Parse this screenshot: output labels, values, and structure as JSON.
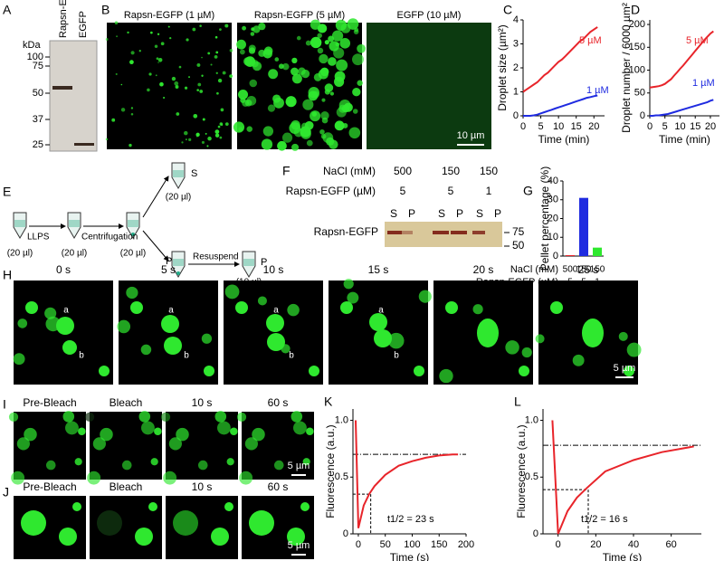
{
  "panel_labels": [
    "A",
    "B",
    "C",
    "D",
    "E",
    "F",
    "G",
    "H",
    "I",
    "J",
    "K",
    "L"
  ],
  "panel_a": {
    "unit": "kDa",
    "markers": [
      "100",
      "75",
      "50",
      "37",
      "25"
    ],
    "lanes": [
      "Rapsn-EGFP",
      "EGFP"
    ]
  },
  "panel_b": {
    "titles": [
      "Rapsn-EGFP (1 µM)",
      "Rapsn-EGFP (5 µM)",
      "EGFP (10 µM)"
    ],
    "scale": "10 µm"
  },
  "panel_e": {
    "step1": "LLPS",
    "step2": "Centrifugation",
    "step3": "Resuspend",
    "volume_start": [
      "(20 µl)",
      "(20 µl)",
      "(20 µl)"
    ],
    "supernatant": "S",
    "supernatant_volume": "(20 µl)",
    "pellet": "P",
    "pellet_final": "P",
    "pellet_volume": "(10 µl)"
  },
  "panel_f": {
    "row1_label": "NaCl (mM)",
    "row1": [
      "500",
      "150",
      "150"
    ],
    "row2_label": "Rapsn-EGFP (µM)",
    "row2": [
      "5",
      "5",
      "1"
    ],
    "band_label": "Rapsn-EGFP",
    "lanes": [
      "S",
      "P",
      "S",
      "P",
      "S",
      "P"
    ],
    "markers": [
      "75",
      "50"
    ]
  },
  "panel_h": {
    "times": [
      "0 s",
      "5 s",
      "10 s",
      "15 s",
      "20 s",
      "25 s"
    ],
    "droplet_a": "a",
    "droplet_b": "b",
    "scale": "5 µm"
  },
  "panel_i": {
    "titles": [
      "Pre-Bleach",
      "Bleach",
      "10 s",
      "60 s"
    ],
    "scale": "5 µm"
  },
  "panel_j": {
    "titles": [
      "Pre-Bleach",
      "Bleach",
      "10 s",
      "60 s"
    ],
    "scale": "5 µm"
  },
  "chart_data": [
    {
      "type": "line",
      "y_label": "Droplet size (µm²)",
      "x_label": "Time (min)",
      "x": [
        0,
        1,
        2,
        3,
        4,
        5,
        6,
        7,
        8,
        9,
        10,
        11,
        12,
        13,
        14,
        15,
        16,
        17,
        18,
        19,
        20,
        21
      ],
      "xlim": [
        0,
        23
      ],
      "xticks": [
        0,
        5,
        10,
        15,
        20
      ],
      "ylim": [
        0,
        4
      ],
      "yticks": [
        0,
        1,
        2,
        3,
        4
      ],
      "series": [
        {
          "name": "5 µM",
          "color": "#e8242a",
          "values": [
            1.0,
            1.1,
            1.2,
            1.3,
            1.4,
            1.55,
            1.7,
            1.8,
            1.95,
            2.1,
            2.25,
            2.35,
            2.5,
            2.65,
            2.8,
            2.95,
            3.1,
            3.2,
            3.35,
            3.5,
            3.6,
            3.7
          ]
        },
        {
          "name": "1 µM",
          "color": "#1f2be0",
          "values": [
            0.0,
            0.0,
            0.0,
            0.02,
            0.05,
            0.1,
            0.15,
            0.2,
            0.25,
            0.3,
            0.35,
            0.4,
            0.45,
            0.5,
            0.55,
            0.6,
            0.65,
            0.7,
            0.75,
            0.78,
            0.82,
            0.85
          ]
        }
      ]
    },
    {
      "type": "line",
      "y_label": "Droplet number / 6000 µm²",
      "x_label": "Time (min)",
      "x": [
        0,
        1,
        2,
        3,
        4,
        5,
        6,
        7,
        8,
        9,
        10,
        11,
        12,
        13,
        14,
        15,
        16,
        17,
        18,
        19,
        20,
        21
      ],
      "xlim": [
        0,
        23
      ],
      "xticks": [
        0,
        5,
        10,
        15,
        20
      ],
      "ylim": [
        0,
        210
      ],
      "yticks": [
        0,
        50,
        100,
        150,
        200
      ],
      "series": [
        {
          "name": "5 µM",
          "color": "#e8242a",
          "values": [
            62,
            63,
            64,
            65,
            67,
            70,
            75,
            80,
            88,
            95,
            103,
            110,
            118,
            126,
            134,
            142,
            150,
            158,
            166,
            173,
            180,
            185
          ]
        },
        {
          "name": "1 µM",
          "color": "#1f2be0",
          "values": [
            0,
            0,
            1,
            1,
            2,
            3,
            4,
            6,
            8,
            10,
            12,
            14,
            16,
            18,
            20,
            22,
            24,
            26,
            28,
            30,
            33,
            35
          ]
        }
      ]
    },
    {
      "type": "bar",
      "y_label": "Pellet percentage (%)",
      "categories_label": "NaCl (mM)",
      "categories": [
        "500",
        "150",
        "150"
      ],
      "categories2_label": "Rapsn-EGFP (µM)",
      "categories2": [
        "5",
        "5",
        "1"
      ],
      "values": [
        0.5,
        31,
        4.5
      ],
      "colors": [
        "#e8242a",
        "#1f2be0",
        "#2ee82e"
      ],
      "ylim": [
        0,
        40
      ],
      "yticks": [
        0,
        10,
        20,
        30,
        40
      ]
    },
    {
      "type": "line",
      "y_label": "Fluorescence (a.u.)",
      "x_label": "Time (s)",
      "annotation": "t1/2 = 23 s",
      "x": [
        -5,
        0,
        10,
        20,
        30,
        50,
        75,
        100,
        125,
        150,
        175,
        185
      ],
      "xlim": [
        -10,
        200
      ],
      "xticks": [
        0,
        50,
        100,
        150,
        200
      ],
      "ylim": [
        0,
        1.1
      ],
      "yticks": [
        0,
        0.5,
        {
          "value": 1,
          "label": "1.0"
        }
      ],
      "plateau": 0.7,
      "half": 0.35,
      "t_half": 23,
      "series": [
        {
          "name": null,
          "color": "#e8242a",
          "values": [
            1.0,
            0.05,
            0.25,
            0.35,
            0.42,
            0.52,
            0.6,
            0.64,
            0.67,
            0.69,
            0.7,
            0.7
          ]
        }
      ]
    },
    {
      "type": "line",
      "y_label": "Fluorescence (a.u.)",
      "x_label": "Time (s)",
      "annotation": "t1/2 = 16 s",
      "x": [
        -3,
        0,
        5,
        10,
        15,
        25,
        40,
        55,
        72
      ],
      "xlim": [
        -8,
        76
      ],
      "xticks": [
        0,
        20,
        40,
        60
      ],
      "ylim": [
        0,
        1.1
      ],
      "yticks": [
        0,
        0.5,
        {
          "value": 1,
          "label": "1.0"
        }
      ],
      "plateau": 0.78,
      "half": 0.39,
      "t_half": 16,
      "series": [
        {
          "name": null,
          "color": "#e8242a",
          "values": [
            1.0,
            0.0,
            0.2,
            0.32,
            0.4,
            0.55,
            0.65,
            0.72,
            0.77
          ]
        }
      ]
    }
  ]
}
